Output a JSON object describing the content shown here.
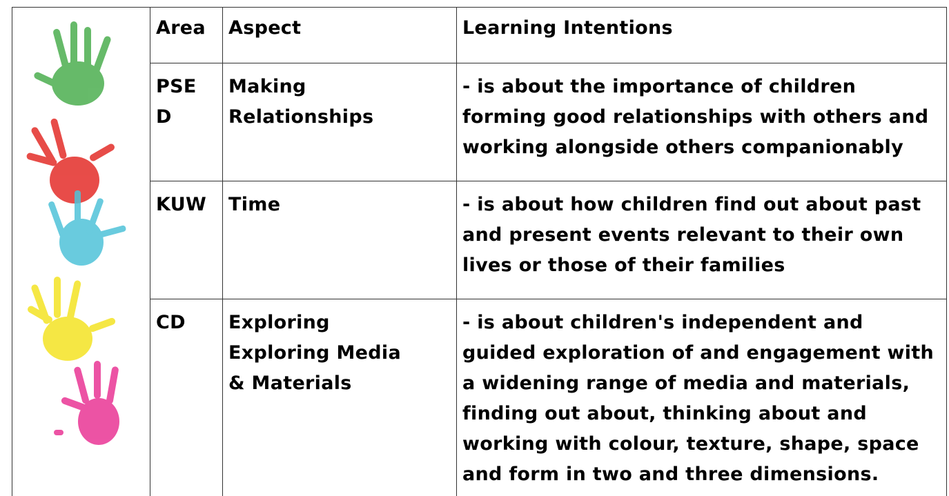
{
  "table": {
    "header": [
      "Area",
      "Aspect",
      "Learning Intentions"
    ],
    "rows": [
      [
        [
          "PSE",
          "D"
        ],
        [
          "Making",
          "Relationships"
        ],
        [
          "- is about the importance of children",
          "forming good relationships with others and",
          "working alongside others companionably"
        ]
      ],
      [
        [
          "KUW"
        ],
        [
          "Time"
        ],
        [
          "- is about how children find out about past",
          "and present events relevant to their own",
          "lives or those of their families"
        ]
      ],
      [
        [
          "CD"
        ],
        [
          "Exploring",
          "Exploring Media",
          "& Materials"
        ],
        [
          "- is about children's independent and",
          "guided exploration of and engagement with",
          "a widening range of media and materials,",
          "finding out about, thinking about and",
          "working with colour, texture, shape, space",
          "and form in two and three dimensions."
        ]
      ]
    ]
  }
}
